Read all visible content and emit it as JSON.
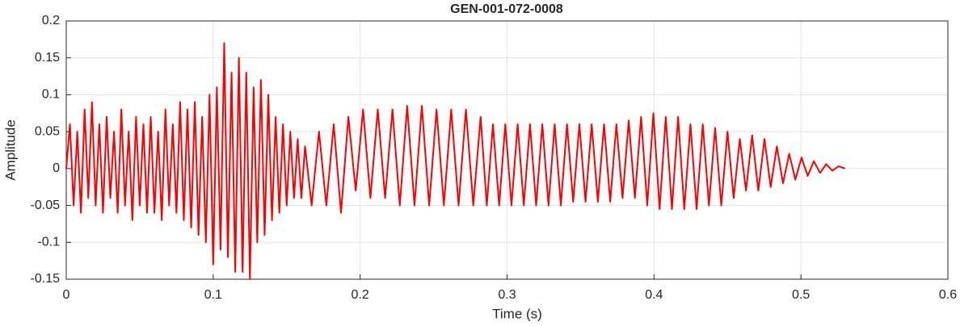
{
  "chart_data": {
    "type": "line",
    "title": "GEN-001-072-0008",
    "xlabel": "Time (s)",
    "ylabel": "Amplitude",
    "xlim": [
      0,
      0.6
    ],
    "ylim": [
      -0.15,
      0.2
    ],
    "xticks": [
      0,
      0.1,
      0.2,
      0.3,
      0.4,
      0.5,
      0.6
    ],
    "yticks": [
      -0.15,
      -0.1,
      -0.05,
      0,
      0.05,
      0.1,
      0.15,
      0.2
    ],
    "grid": true,
    "series": [
      {
        "color": "#ff0000",
        "x": [
          0,
          0.0025,
          0.005,
          0.0075,
          0.01,
          0.0125,
          0.015,
          0.0175,
          0.02,
          0.0225,
          0.025,
          0.0275,
          0.03,
          0.0325,
          0.035,
          0.0375,
          0.04,
          0.0425,
          0.045,
          0.0475,
          0.05,
          0.0525,
          0.055,
          0.0575,
          0.06,
          0.0625,
          0.065,
          0.0675,
          0.07,
          0.0725,
          0.075,
          0.0775,
          0.08,
          0.0825,
          0.085,
          0.0875,
          0.09,
          0.0925,
          0.095,
          0.0975,
          0.1,
          0.1025,
          0.105,
          0.1075,
          0.11,
          0.1125,
          0.115,
          0.1175,
          0.12,
          0.1225,
          0.125,
          0.1275,
          0.13,
          0.1325,
          0.135,
          0.1375,
          0.14,
          0.1425,
          0.145,
          0.1475,
          0.15,
          0.1525,
          0.155,
          0.1575,
          0.16,
          0.1625,
          0.167,
          0.172,
          0.177,
          0.182,
          0.187,
          0.192,
          0.197,
          0.202,
          0.207,
          0.212,
          0.217,
          0.222,
          0.227,
          0.232,
          0.237,
          0.242,
          0.247,
          0.252,
          0.257,
          0.262,
          0.267,
          0.272,
          0.277,
          0.282,
          0.2862,
          0.2904,
          0.2946,
          0.2988,
          0.303,
          0.3072,
          0.3114,
          0.3156,
          0.3198,
          0.324,
          0.3282,
          0.3324,
          0.3366,
          0.3408,
          0.345,
          0.3492,
          0.3534,
          0.3576,
          0.3618,
          0.366,
          0.3702,
          0.3744,
          0.3786,
          0.3828,
          0.387,
          0.3912,
          0.3954,
          0.3996,
          0.4038,
          0.408,
          0.4122,
          0.4164,
          0.4206,
          0.4248,
          0.429,
          0.4332,
          0.4374,
          0.4416,
          0.4458,
          0.45,
          0.4542,
          0.4584,
          0.4626,
          0.4668,
          0.471,
          0.4752,
          0.4794,
          0.4836,
          0.4878,
          0.492,
          0.4962,
          0.5004,
          0.5046,
          0.5088,
          0.513,
          0.5172,
          0.5214,
          0.5256,
          0.53
        ],
        "values": [
          0,
          0.06,
          -0.05,
          0.05,
          -0.06,
          0.08,
          -0.04,
          0.09,
          -0.05,
          0.06,
          -0.06,
          0.07,
          -0.04,
          0.05,
          -0.06,
          0.08,
          -0.05,
          0.05,
          -0.07,
          0.07,
          -0.05,
          0.06,
          -0.06,
          0.07,
          -0.06,
          0.05,
          -0.07,
          0.08,
          -0.05,
          0.06,
          -0.06,
          0.09,
          -0.07,
          0.08,
          -0.08,
          0.09,
          -0.09,
          0.07,
          -0.1,
          0.1,
          -0.13,
          0.11,
          -0.11,
          0.17,
          -0.12,
          0.13,
          -0.14,
          0.15,
          -0.14,
          0.13,
          -0.15,
          0.11,
          -0.1,
          0.12,
          -0.09,
          0.1,
          -0.07,
          0.07,
          -0.06,
          0.06,
          -0.05,
          0.05,
          -0.04,
          0.04,
          -0.04,
          0.03,
          -0.05,
          0.05,
          -0.05,
          0.06,
          -0.06,
          0.07,
          -0.03,
          0.08,
          -0.04,
          0.08,
          -0.04,
          0.08,
          -0.05,
          0.085,
          -0.05,
          0.085,
          -0.05,
          0.08,
          -0.05,
          0.08,
          -0.05,
          0.08,
          -0.05,
          0.07,
          -0.05,
          0.06,
          -0.05,
          0.06,
          -0.05,
          0.06,
          -0.05,
          0.06,
          -0.05,
          0.06,
          -0.05,
          0.06,
          -0.05,
          0.06,
          -0.045,
          0.06,
          -0.045,
          0.06,
          -0.045,
          0.06,
          -0.045,
          0.06,
          -0.04,
          0.065,
          -0.04,
          0.07,
          -0.05,
          0.075,
          -0.055,
          0.07,
          -0.055,
          0.07,
          -0.055,
          0.06,
          -0.055,
          0.06,
          -0.05,
          0.055,
          -0.05,
          0.05,
          -0.04,
          0.04,
          -0.03,
          0.045,
          -0.03,
          0.04,
          -0.025,
          0.03,
          -0.02,
          0.02,
          -0.015,
          0.015,
          -0.01,
          0.01,
          -0.006,
          0.006,
          -0.003,
          0.003,
          0
        ]
      }
    ]
  }
}
